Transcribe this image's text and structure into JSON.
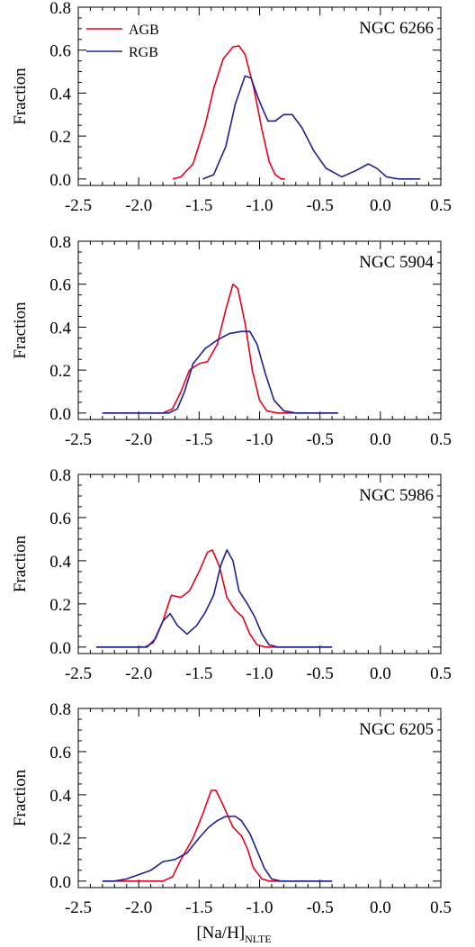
{
  "chart_data": [
    {
      "type": "line",
      "title": "NGC 6266",
      "ylabel": "Fraction",
      "xlim": [
        -2.5,
        0.5
      ],
      "ylim": [
        -0.03,
        0.8
      ],
      "xticks": [
        "-2.5",
        "-2.0",
        "-1.5",
        "-1.0",
        "-0.5",
        "0.0",
        "0.5"
      ],
      "yticks": [
        "0.0",
        "0.2",
        "0.4",
        "0.6",
        "0.8"
      ],
      "legend": {
        "position": "top-left",
        "entries": [
          "AGB",
          "RGB"
        ]
      },
      "series": [
        {
          "name": "AGB",
          "color": "#e8001c",
          "points": [
            [
              -1.72,
              0.0
            ],
            [
              -1.65,
              0.01
            ],
            [
              -1.55,
              0.07
            ],
            [
              -1.45,
              0.25
            ],
            [
              -1.38,
              0.42
            ],
            [
              -1.3,
              0.56
            ],
            [
              -1.22,
              0.615
            ],
            [
              -1.17,
              0.62
            ],
            [
              -1.12,
              0.58
            ],
            [
              -1.05,
              0.43
            ],
            [
              -0.98,
              0.23
            ],
            [
              -0.92,
              0.08
            ],
            [
              -0.87,
              0.02
            ],
            [
              -0.82,
              0.0
            ],
            [
              -0.79,
              0.0
            ]
          ]
        },
        {
          "name": "RGB",
          "color": "#1f1f8f",
          "points": [
            [
              -1.47,
              0.0
            ],
            [
              -1.38,
              0.02
            ],
            [
              -1.28,
              0.15
            ],
            [
              -1.2,
              0.35
            ],
            [
              -1.12,
              0.48
            ],
            [
              -1.07,
              0.47
            ],
            [
              -1.0,
              0.36
            ],
            [
              -0.93,
              0.27
            ],
            [
              -0.87,
              0.27
            ],
            [
              -0.8,
              0.3
            ],
            [
              -0.73,
              0.3
            ],
            [
              -0.65,
              0.24
            ],
            [
              -0.55,
              0.13
            ],
            [
              -0.45,
              0.05
            ],
            [
              -0.32,
              0.01
            ],
            [
              -0.2,
              0.04
            ],
            [
              -0.1,
              0.07
            ],
            [
              -0.03,
              0.05
            ],
            [
              0.05,
              0.01
            ],
            [
              0.15,
              0.0
            ],
            [
              0.33,
              0.0
            ]
          ]
        }
      ]
    },
    {
      "type": "line",
      "title": "NGC 5904",
      "ylabel": "Fraction",
      "xlim": [
        -2.5,
        0.5
      ],
      "ylim": [
        -0.03,
        0.8
      ],
      "xticks": [
        "-2.5",
        "-2.0",
        "-1.5",
        "-1.0",
        "-0.5",
        "0.0",
        "0.5"
      ],
      "yticks": [
        "0.0",
        "0.2",
        "0.4",
        "0.6",
        "0.8"
      ],
      "series": [
        {
          "name": "AGB",
          "color": "#e8001c",
          "points": [
            [
              -2.3,
              0.0
            ],
            [
              -1.8,
              0.0
            ],
            [
              -1.72,
              0.02
            ],
            [
              -1.65,
              0.1
            ],
            [
              -1.58,
              0.2
            ],
            [
              -1.5,
              0.23
            ],
            [
              -1.43,
              0.24
            ],
            [
              -1.35,
              0.32
            ],
            [
              -1.28,
              0.48
            ],
            [
              -1.22,
              0.6
            ],
            [
              -1.18,
              0.58
            ],
            [
              -1.12,
              0.42
            ],
            [
              -1.06,
              0.2
            ],
            [
              -1.0,
              0.06
            ],
            [
              -0.94,
              0.01
            ],
            [
              -0.85,
              0.0
            ],
            [
              -0.35,
              0.0
            ]
          ]
        },
        {
          "name": "RGB",
          "color": "#1f1f8f",
          "points": [
            [
              -2.3,
              0.0
            ],
            [
              -1.75,
              0.0
            ],
            [
              -1.68,
              0.02
            ],
            [
              -1.62,
              0.1
            ],
            [
              -1.55,
              0.23
            ],
            [
              -1.45,
              0.3
            ],
            [
              -1.35,
              0.34
            ],
            [
              -1.25,
              0.37
            ],
            [
              -1.15,
              0.38
            ],
            [
              -1.08,
              0.38
            ],
            [
              -1.02,
              0.32
            ],
            [
              -0.95,
              0.18
            ],
            [
              -0.88,
              0.06
            ],
            [
              -0.8,
              0.01
            ],
            [
              -0.7,
              0.0
            ],
            [
              -0.35,
              0.0
            ]
          ]
        }
      ]
    },
    {
      "type": "line",
      "title": "NGC 5986",
      "ylabel": "Fraction",
      "xlim": [
        -2.5,
        0.5
      ],
      "ylim": [
        -0.03,
        0.8
      ],
      "xticks": [
        "-2.5",
        "-2.0",
        "-1.5",
        "-1.0",
        "-0.5",
        "0.0",
        "0.5"
      ],
      "yticks": [
        "0.0",
        "0.2",
        "0.4",
        "0.6",
        "0.8"
      ],
      "series": [
        {
          "name": "AGB",
          "color": "#e8001c",
          "points": [
            [
              -2.35,
              0.0
            ],
            [
              -1.95,
              0.0
            ],
            [
              -1.88,
              0.02
            ],
            [
              -1.8,
              0.12
            ],
            [
              -1.73,
              0.24
            ],
            [
              -1.65,
              0.23
            ],
            [
              -1.58,
              0.26
            ],
            [
              -1.5,
              0.35
            ],
            [
              -1.43,
              0.44
            ],
            [
              -1.39,
              0.45
            ],
            [
              -1.33,
              0.37
            ],
            [
              -1.27,
              0.23
            ],
            [
              -1.2,
              0.17
            ],
            [
              -1.14,
              0.14
            ],
            [
              -1.08,
              0.06
            ],
            [
              -1.02,
              0.01
            ],
            [
              -0.95,
              0.0
            ],
            [
              -0.4,
              0.0
            ]
          ]
        },
        {
          "name": "RGB",
          "color": "#1f1f8f",
          "points": [
            [
              -2.35,
              0.0
            ],
            [
              -1.93,
              0.0
            ],
            [
              -1.86,
              0.04
            ],
            [
              -1.8,
              0.12
            ],
            [
              -1.74,
              0.155
            ],
            [
              -1.68,
              0.1
            ],
            [
              -1.6,
              0.06
            ],
            [
              -1.52,
              0.1
            ],
            [
              -1.45,
              0.16
            ],
            [
              -1.38,
              0.24
            ],
            [
              -1.32,
              0.38
            ],
            [
              -1.27,
              0.45
            ],
            [
              -1.22,
              0.4
            ],
            [
              -1.17,
              0.26
            ],
            [
              -1.1,
              0.2
            ],
            [
              -1.04,
              0.14
            ],
            [
              -0.98,
              0.06
            ],
            [
              -0.92,
              0.01
            ],
            [
              -0.85,
              0.0
            ],
            [
              -0.4,
              0.0
            ]
          ]
        }
      ]
    },
    {
      "type": "line",
      "title": "NGC 6205",
      "ylabel": "Fraction",
      "xlabel": "[Na/H]",
      "xlabel_sub": "NLTE",
      "xlim": [
        -2.5,
        0.5
      ],
      "ylim": [
        -0.03,
        0.8
      ],
      "xticks": [
        "-2.5",
        "-2.0",
        "-1.5",
        "-1.0",
        "-0.5",
        "0.0",
        "0.5"
      ],
      "yticks": [
        "0.0",
        "0.2",
        "0.4",
        "0.6",
        "0.8"
      ],
      "series": [
        {
          "name": "AGB",
          "color": "#e8001c",
          "points": [
            [
              -2.3,
              0.0
            ],
            [
              -1.8,
              0.0
            ],
            [
              -1.72,
              0.02
            ],
            [
              -1.65,
              0.1
            ],
            [
              -1.55,
              0.2
            ],
            [
              -1.47,
              0.31
            ],
            [
              -1.4,
              0.42
            ],
            [
              -1.36,
              0.42
            ],
            [
              -1.3,
              0.35
            ],
            [
              -1.22,
              0.25
            ],
            [
              -1.15,
              0.21
            ],
            [
              -1.1,
              0.15
            ],
            [
              -1.05,
              0.06
            ],
            [
              -0.98,
              0.01
            ],
            [
              -0.92,
              0.0
            ],
            [
              -0.4,
              0.0
            ]
          ]
        },
        {
          "name": "RGB",
          "color": "#1f1f8f",
          "points": [
            [
              -2.3,
              0.0
            ],
            [
              -2.2,
              0.0
            ],
            [
              -2.1,
              0.01
            ],
            [
              -2.0,
              0.03
            ],
            [
              -1.9,
              0.05
            ],
            [
              -1.8,
              0.09
            ],
            [
              -1.7,
              0.1
            ],
            [
              -1.6,
              0.13
            ],
            [
              -1.5,
              0.2
            ],
            [
              -1.42,
              0.25
            ],
            [
              -1.35,
              0.28
            ],
            [
              -1.28,
              0.3
            ],
            [
              -1.2,
              0.3
            ],
            [
              -1.15,
              0.28
            ],
            [
              -1.08,
              0.22
            ],
            [
              -1.02,
              0.14
            ],
            [
              -0.96,
              0.06
            ],
            [
              -0.9,
              0.01
            ],
            [
              -0.82,
              0.0
            ],
            [
              -0.4,
              0.0
            ]
          ]
        }
      ]
    }
  ]
}
